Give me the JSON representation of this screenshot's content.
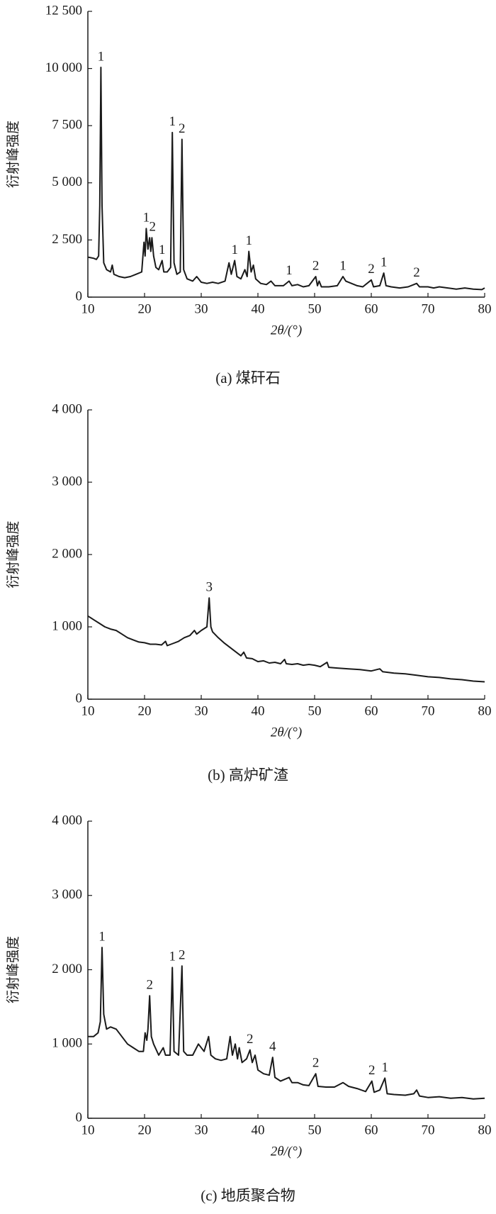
{
  "chart_data": [
    {
      "type": "line",
      "title": "(a) 煤矸石",
      "x_label": "2θ/(°)",
      "y_label": "衍射峰强度",
      "color": "#1a1a1a",
      "xlim": [
        10,
        80
      ],
      "xticks": [
        10,
        20,
        30,
        40,
        50,
        60,
        70,
        80
      ],
      "ylim": [
        0,
        12500
      ],
      "yticks": [
        0,
        {
          "value": 2500,
          "label": "2 500"
        },
        {
          "value": 5000,
          "label": "5 000"
        },
        {
          "value": 7500,
          "label": "7 500"
        },
        {
          "value": 10000,
          "label": "10 000"
        },
        {
          "value": 12500,
          "label": "12 500"
        }
      ],
      "x": [
        10,
        11,
        11.5,
        11.9,
        12.1,
        12.3,
        12.5,
        12.8,
        13.3,
        14,
        14.3,
        14.6,
        15.5,
        16.5,
        17.5,
        18.5,
        19.5,
        19.9,
        20.1,
        20.3,
        20.6,
        20.9,
        21.1,
        21.3,
        21.6,
        22,
        22.5,
        23.1,
        23.4,
        24,
        24.6,
        24.9,
        25.2,
        25.7,
        26.3,
        26.6,
        26.9,
        27.5,
        28.5,
        29.2,
        30,
        31,
        32,
        33,
        34.2,
        34.9,
        35.3,
        35.9,
        36.3,
        37,
        37.7,
        38.1,
        38.4,
        38.8,
        39.2,
        39.6,
        40.5,
        41.5,
        42.3,
        43,
        44.5,
        45.5,
        46,
        47,
        48,
        49,
        50.2,
        50.5,
        50.8,
        51.2,
        52.5,
        54,
        55,
        55.5,
        56.5,
        57.5,
        58.5,
        60,
        60.4,
        61.5,
        62.2,
        62.6,
        63.5,
        65,
        66.5,
        67.5,
        68,
        68.5,
        70,
        71,
        72,
        73.5,
        75,
        76.5,
        78,
        79.5,
        80
      ],
      "values": [
        1750,
        1700,
        1650,
        1800,
        4000,
        10050,
        4000,
        1500,
        1200,
        1100,
        1400,
        1000,
        900,
        850,
        900,
        1000,
        1100,
        2400,
        1800,
        3000,
        2100,
        2600,
        2000,
        2600,
        1800,
        1300,
        1200,
        1600,
        1100,
        1100,
        1300,
        7200,
        1500,
        1000,
        1100,
        6900,
        1200,
        800,
        700,
        900,
        650,
        600,
        650,
        600,
        700,
        1500,
        1000,
        1600,
        900,
        800,
        1200,
        900,
        2000,
        1100,
        1400,
        800,
        600,
        550,
        700,
        500,
        500,
        700,
        500,
        550,
        450,
        500,
        900,
        500,
        700,
        450,
        450,
        500,
        900,
        700,
        600,
        500,
        450,
        750,
        450,
        500,
        1050,
        500,
        450,
        400,
        450,
        550,
        600,
        450,
        450,
        400,
        450,
        400,
        350,
        400,
        350,
        330,
        400
      ],
      "annotations": [
        {
          "text": "1",
          "x": 12.3,
          "y": 10050
        },
        {
          "text": "1",
          "x": 20.3,
          "y": 3000
        },
        {
          "text": "2",
          "x": 21.4,
          "y": 2600
        },
        {
          "text": "1",
          "x": 23.1,
          "y": 1600
        },
        {
          "text": "1",
          "x": 24.9,
          "y": 7200
        },
        {
          "text": "2",
          "x": 26.6,
          "y": 6900
        },
        {
          "text": "1",
          "x": 35.9,
          "y": 1600
        },
        {
          "text": "1",
          "x": 38.4,
          "y": 2000
        },
        {
          "text": "1",
          "x": 45.5,
          "y": 700
        },
        {
          "text": "2",
          "x": 50.2,
          "y": 900
        },
        {
          "text": "1",
          "x": 55,
          "y": 900
        },
        {
          "text": "2",
          "x": 60,
          "y": 750
        },
        {
          "text": "1",
          "x": 62.2,
          "y": 1050
        },
        {
          "text": "2",
          "x": 68,
          "y": 600
        }
      ]
    },
    {
      "type": "line",
      "title": "(b) 高炉矿渣",
      "x_label": "2θ/(°)",
      "y_label": "衍射峰强度",
      "color": "#1a1a1a",
      "xlim": [
        10,
        80
      ],
      "xticks": [
        10,
        20,
        30,
        40,
        50,
        60,
        70,
        80
      ],
      "ylim": [
        0,
        4000
      ],
      "yticks": [
        0,
        {
          "value": 1000,
          "label": "1 000"
        },
        {
          "value": 2000,
          "label": "2 000"
        },
        {
          "value": 3000,
          "label": "3 000"
        },
        {
          "value": 4000,
          "label": "4 000"
        }
      ],
      "x": [
        10,
        11,
        12,
        13,
        14,
        15,
        16,
        17,
        18,
        19,
        20,
        21,
        22,
        23,
        23.7,
        24,
        25,
        26,
        27,
        28,
        28.8,
        29.2,
        30,
        31,
        31.4,
        31.7,
        32,
        33,
        34,
        35,
        36,
        37,
        37.5,
        38,
        39,
        40,
        41,
        42,
        43,
        44,
        44.7,
        45,
        46,
        47,
        48,
        49,
        50,
        51,
        52.2,
        52.5,
        54,
        56,
        58,
        60,
        61.5,
        62,
        64,
        66,
        68,
        70,
        72,
        74,
        76,
        78,
        80
      ],
      "values": [
        1150,
        1100,
        1050,
        1000,
        970,
        950,
        900,
        850,
        820,
        790,
        780,
        760,
        760,
        750,
        800,
        740,
        770,
        800,
        850,
        880,
        950,
        900,
        950,
        1000,
        1400,
        1000,
        930,
        850,
        780,
        720,
        660,
        600,
        650,
        570,
        560,
        520,
        530,
        500,
        510,
        490,
        550,
        490,
        480,
        490,
        470,
        480,
        470,
        450,
        510,
        440,
        430,
        420,
        410,
        390,
        420,
        380,
        360,
        350,
        330,
        310,
        300,
        280,
        270,
        250,
        240
      ],
      "annotations": [
        {
          "text": "3",
          "x": 31.4,
          "y": 1400
        }
      ]
    },
    {
      "type": "line",
      "title": "(c) 地质聚合物",
      "x_label": "2θ/(°)",
      "y_label": "衍射峰强度",
      "color": "#1a1a1a",
      "xlim": [
        10,
        80
      ],
      "xticks": [
        10,
        20,
        30,
        40,
        50,
        60,
        70,
        80
      ],
      "ylim": [
        0,
        4000
      ],
      "yticks": [
        0,
        {
          "value": 1000,
          "label": "1 000"
        },
        {
          "value": 2000,
          "label": "2 000"
        },
        {
          "value": 3000,
          "label": "3 000"
        },
        {
          "value": 4000,
          "label": "4 000"
        }
      ],
      "x": [
        10,
        11,
        11.8,
        12.2,
        12.5,
        12.8,
        13.3,
        14,
        15,
        16,
        17,
        18,
        19,
        19.8,
        20.1,
        20.4,
        20.6,
        20.9,
        21.2,
        21.6,
        22.5,
        23.3,
        23.7,
        24.5,
        24.9,
        25.2,
        26,
        26.6,
        26.9,
        27.5,
        28.5,
        29.5,
        30.5,
        31.3,
        31.7,
        32.5,
        33.5,
        34.5,
        35.1,
        35.5,
        36,
        36.4,
        36.7,
        37.2,
        38,
        38.6,
        39,
        39.5,
        40,
        41,
        42,
        42.6,
        43,
        44,
        45.5,
        46,
        47,
        48,
        49,
        50.2,
        50.6,
        52,
        53.5,
        55,
        56,
        57.5,
        59,
        60.1,
        60.5,
        61.5,
        62.4,
        62.8,
        64,
        66,
        67.5,
        68,
        68.5,
        70,
        72,
        74,
        76,
        78,
        80
      ],
      "values": [
        1100,
        1100,
        1150,
        1300,
        2300,
        1400,
        1200,
        1230,
        1200,
        1100,
        1000,
        950,
        900,
        900,
        1150,
        1050,
        1200,
        1650,
        1100,
        1000,
        850,
        950,
        850,
        850,
        2030,
        900,
        850,
        2050,
        900,
        850,
        850,
        1000,
        900,
        1100,
        850,
        800,
        780,
        800,
        1100,
        850,
        1000,
        800,
        950,
        750,
        800,
        920,
        750,
        850,
        650,
        600,
        580,
        820,
        550,
        500,
        550,
        480,
        480,
        450,
        440,
        600,
        430,
        420,
        420,
        480,
        430,
        400,
        360,
        500,
        350,
        380,
        540,
        330,
        320,
        310,
        330,
        380,
        300,
        280,
        290,
        270,
        280,
        260,
        270
      ],
      "annotations": [
        {
          "text": "1",
          "x": 12.5,
          "y": 2300
        },
        {
          "text": "2",
          "x": 20.9,
          "y": 1650
        },
        {
          "text": "1",
          "x": 24.9,
          "y": 2030
        },
        {
          "text": "2",
          "x": 26.6,
          "y": 2050
        },
        {
          "text": "2",
          "x": 38.6,
          "y": 920
        },
        {
          "text": "4",
          "x": 42.6,
          "y": 820
        },
        {
          "text": "2",
          "x": 50.2,
          "y": 600
        },
        {
          "text": "2",
          "x": 60.1,
          "y": 500
        },
        {
          "text": "1",
          "x": 62.4,
          "y": 540
        }
      ]
    }
  ]
}
